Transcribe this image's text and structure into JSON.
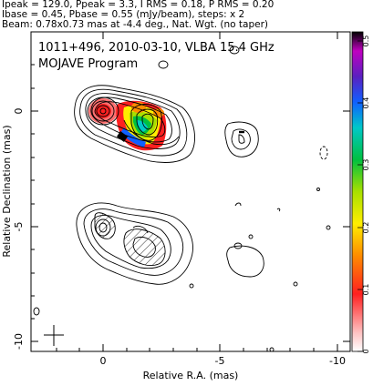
{
  "header": {
    "line1": "Ipeak = 129.0, Ppeak = 3.3, I RMS = 0.18, P RMS = 0.20",
    "line2": "Ibase = 0.45, Pbase = 0.55 (mJy/beam), steps: x 2",
    "line3": "Beam: 0.78x0.73 mas at -4.4 deg., Nat. Wgt. (no taper)"
  },
  "plot": {
    "source_label": "1011+496, 2010-03-10, VLBA 15.4 GHz",
    "program_label": "MOJAVE Program",
    "x_axis_label": "Relative R.A. (mas)",
    "y_axis_label": "Relative Declination (mas)",
    "x_ticks": [
      "0",
      "-5",
      "-10"
    ],
    "y_ticks": [
      "0",
      "-5",
      "-10"
    ]
  },
  "colorbar": {
    "ticks": [
      "0",
      "0.1",
      "0.2",
      "0.3",
      "0.4",
      "0.5"
    ]
  }
}
